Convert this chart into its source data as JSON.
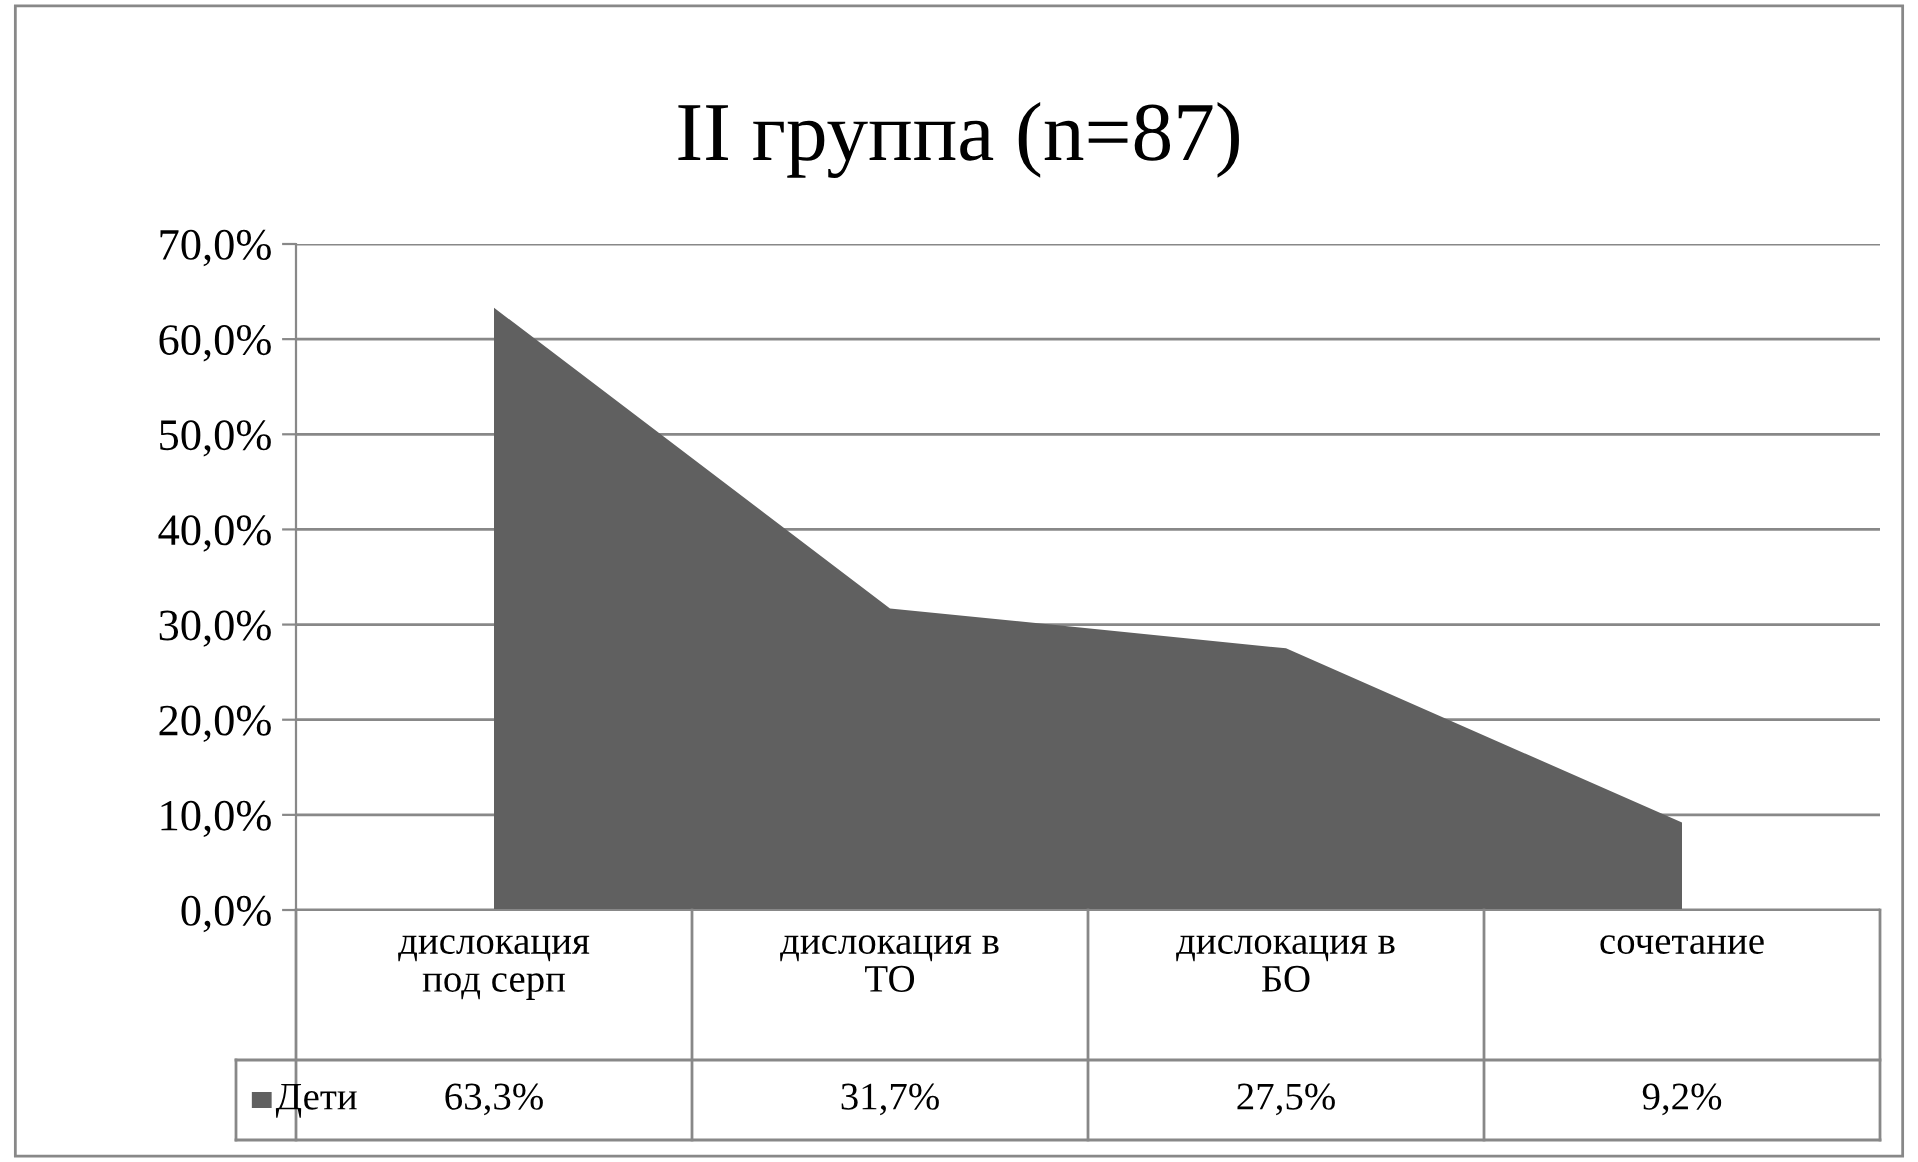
{
  "chart_data": {
    "type": "area",
    "title": "II группа (n=87)",
    "categories": [
      "дислокация\nпод серп",
      "дислокация в\nТО",
      "дислокация в\nБО",
      "сочетание"
    ],
    "series": [
      {
        "name": "Дети",
        "color": "#606060",
        "values": [
          63.3,
          31.7,
          27.5,
          9.2
        ],
        "value_labels": [
          "63,3%",
          "31,7%",
          "27,5%",
          "9,2%"
        ]
      }
    ],
    "ylim": [
      0,
      70
    ],
    "yticks": [
      {
        "value": 0,
        "label": "0,0%"
      },
      {
        "value": 10,
        "label": "10,0%"
      },
      {
        "value": 20,
        "label": "20,0%"
      },
      {
        "value": 30,
        "label": "30,0%"
      },
      {
        "value": 40,
        "label": "40,0%"
      },
      {
        "value": 50,
        "label": "50,0%"
      },
      {
        "value": 60,
        "label": "60,0%"
      },
      {
        "value": 70,
        "label": "70,0%"
      }
    ],
    "grid": "y",
    "legend": "bottom"
  }
}
